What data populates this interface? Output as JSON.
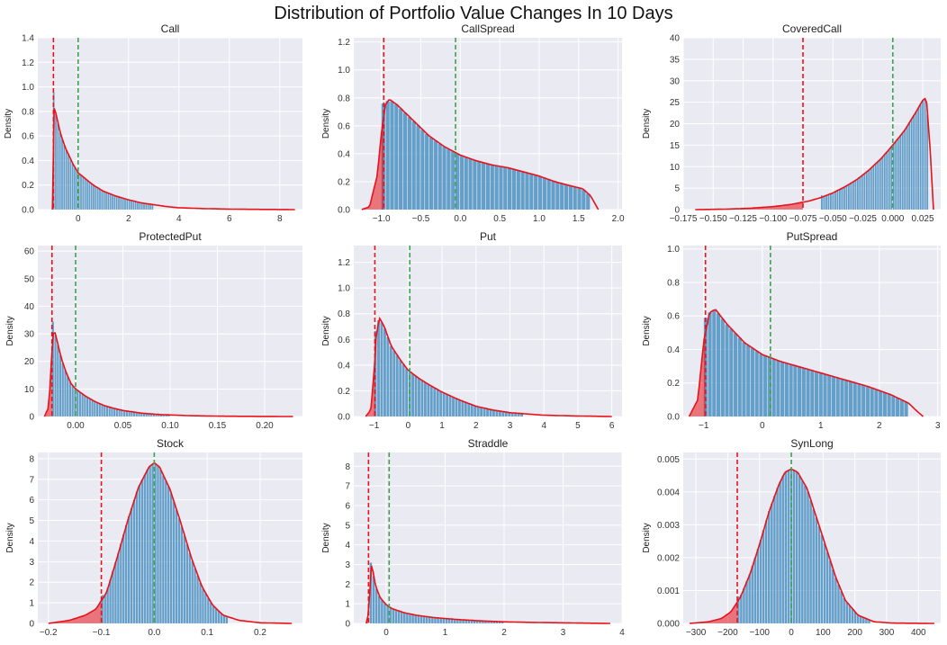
{
  "figure": {
    "title": "Distribution of Portfolio Value Changes In 10 Days"
  },
  "colors": {
    "background": "#eaeaf2",
    "grid": "#ffffff",
    "bar": "#4c92c3",
    "kde": "#e8121b",
    "var_line": "#e8121b",
    "mean_line": "#3fa34d"
  },
  "chart_data": [
    {
      "type": "histogram",
      "title": "Call",
      "ylabel": "Density",
      "xlim": [
        -1.6,
        8.9
      ],
      "ylim": [
        0,
        1.4
      ],
      "xticks": [
        0,
        2,
        4,
        6,
        8
      ],
      "xtick_labels": [
        "0",
        "2",
        "4",
        "6",
        "8"
      ],
      "yticks": [
        0,
        0.2,
        0.4,
        0.6,
        0.8,
        1.0,
        1.2,
        1.4
      ],
      "ytick_labels": [
        "0.0",
        "0.2",
        "0.4",
        "0.6",
        "0.8",
        "1.0",
        "1.2",
        "1.4"
      ],
      "x": [
        -1.02,
        -1.0,
        -0.9,
        -0.7,
        -0.5,
        -0.2,
        0.0,
        0.3,
        0.6,
        1.0,
        1.5,
        2.0,
        2.5,
        3.0,
        3.5,
        4.0,
        5.0,
        6.0,
        7.0,
        8.0,
        8.6
      ],
      "density": [
        0,
        0.85,
        0.8,
        0.62,
        0.5,
        0.37,
        0.3,
        0.25,
        0.2,
        0.15,
        0.11,
        0.08,
        0.055,
        0.04,
        0.025,
        0.015,
        0.008,
        0.004,
        0.002,
        0.001,
        0
      ],
      "var_line": -0.98,
      "mean_line": 0.0,
      "bar_range": [
        -1.0,
        3.0
      ]
    },
    {
      "type": "histogram",
      "title": "CallSpread",
      "ylabel": "Density",
      "xlim": [
        -1.35,
        2.05
      ],
      "ylim": [
        0,
        1.23
      ],
      "xticks": [
        -1.0,
        -0.5,
        0.0,
        0.5,
        1.0,
        1.5,
        2.0
      ],
      "xtick_labels": [
        "−1.0",
        "−0.5",
        "0.0",
        "0.5",
        "1.0",
        "1.5",
        "2.0"
      ],
      "yticks": [
        0,
        0.2,
        0.4,
        0.6,
        0.8,
        1.0,
        1.2
      ],
      "ytick_labels": [
        "0.0",
        "0.2",
        "0.4",
        "0.6",
        "0.8",
        "1.0",
        "1.2"
      ],
      "x": [
        -1.25,
        -1.15,
        -1.05,
        -1.0,
        -0.95,
        -0.9,
        -0.8,
        -0.6,
        -0.4,
        -0.2,
        0.0,
        0.2,
        0.4,
        0.6,
        0.8,
        1.0,
        1.2,
        1.4,
        1.55,
        1.65,
        1.75
      ],
      "density": [
        0,
        0.02,
        0.25,
        0.55,
        0.75,
        0.79,
        0.75,
        0.64,
        0.53,
        0.45,
        0.39,
        0.35,
        0.32,
        0.3,
        0.27,
        0.24,
        0.2,
        0.17,
        0.15,
        0.1,
        0
      ],
      "var_line": -0.97,
      "mean_line": -0.06,
      "bar_range": [
        -1.0,
        1.65
      ]
    },
    {
      "type": "histogram",
      "title": "CoveredCall",
      "ylabel": "Density",
      "xlim": [
        -0.175,
        0.04
      ],
      "ylim": [
        0,
        40
      ],
      "xticks": [
        -0.175,
        -0.15,
        -0.125,
        -0.1,
        -0.075,
        -0.05,
        -0.025,
        0.0,
        0.025
      ],
      "xtick_labels": [
        "−0.175",
        "−0.150",
        "−0.125",
        "−0.100",
        "−0.075",
        "−0.050",
        "−0.025",
        "0.000",
        "0.025"
      ],
      "yticks": [
        0,
        5,
        10,
        15,
        20,
        25,
        30,
        35,
        40
      ],
      "ytick_labels": [
        "0",
        "5",
        "10",
        "15",
        "20",
        "25",
        "30",
        "35",
        "40"
      ],
      "x": [
        -0.165,
        -0.14,
        -0.12,
        -0.1,
        -0.085,
        -0.07,
        -0.06,
        -0.05,
        -0.04,
        -0.03,
        -0.02,
        -0.01,
        0.0,
        0.01,
        0.02,
        0.025,
        0.028,
        0.031,
        0.034
      ],
      "density": [
        0,
        0.1,
        0.3,
        0.7,
        1.2,
        2.0,
        2.8,
        3.9,
        5.3,
        7.0,
        9.2,
        11.8,
        15.0,
        18.5,
        23.0,
        25.5,
        26.0,
        15.0,
        0
      ],
      "var_line": -0.075,
      "mean_line": 0.0,
      "bar_range": [
        -0.06,
        0.03
      ]
    },
    {
      "type": "histogram",
      "title": "ProtectedPut",
      "ylabel": "Density",
      "xlim": [
        -0.04,
        0.24
      ],
      "ylim": [
        0,
        62
      ],
      "xticks": [
        0.0,
        0.05,
        0.1,
        0.15,
        0.2
      ],
      "xtick_labels": [
        "0.00",
        "0.05",
        "0.10",
        "0.15",
        "0.20"
      ],
      "yticks": [
        0,
        10,
        20,
        30,
        40,
        50,
        60
      ],
      "ytick_labels": [
        "0",
        "10",
        "20",
        "30",
        "40",
        "50",
        "60"
      ],
      "x": [
        -0.033,
        -0.029,
        -0.026,
        -0.025,
        -0.023,
        -0.02,
        -0.015,
        -0.01,
        -0.005,
        0.0,
        0.01,
        0.02,
        0.03,
        0.04,
        0.05,
        0.07,
        0.09,
        0.12,
        0.16,
        0.2,
        0.23
      ],
      "density": [
        0,
        3,
        15,
        26,
        32,
        28,
        21,
        16,
        12,
        10,
        7.5,
        5.5,
        4.0,
        3.0,
        2.2,
        1.2,
        0.7,
        0.3,
        0.1,
        0.03,
        0
      ],
      "var_line": -0.025,
      "mean_line": 0.0,
      "bar_range": [
        -0.025,
        0.1
      ]
    },
    {
      "type": "histogram",
      "title": "Put",
      "ylabel": "Density",
      "xlim": [
        -1.6,
        6.3
      ],
      "ylim": [
        0,
        1.33
      ],
      "xticks": [
        -1,
        0,
        1,
        2,
        3,
        4,
        5,
        6
      ],
      "xtick_labels": [
        "−1",
        "0",
        "1",
        "2",
        "3",
        "4",
        "5",
        "6"
      ],
      "yticks": [
        0,
        0.2,
        0.4,
        0.6,
        0.8,
        1.0,
        1.2
      ],
      "ytick_labels": [
        "0.0",
        "0.2",
        "0.4",
        "0.6",
        "0.8",
        "1.0",
        "1.2"
      ],
      "x": [
        -1.25,
        -1.1,
        -1.0,
        -0.95,
        -0.85,
        -0.7,
        -0.5,
        -0.2,
        0.0,
        0.3,
        0.6,
        1.0,
        1.5,
        2.0,
        2.5,
        3.0,
        3.5,
        4.0,
        5.0,
        6.0
      ],
      "density": [
        0,
        0.05,
        0.35,
        0.6,
        0.77,
        0.7,
        0.55,
        0.43,
        0.36,
        0.3,
        0.25,
        0.19,
        0.13,
        0.08,
        0.05,
        0.03,
        0.02,
        0.01,
        0.004,
        0
      ],
      "var_line": -0.98,
      "mean_line": 0.05,
      "bar_range": [
        -1.0,
        3.4
      ]
    },
    {
      "type": "histogram",
      "title": "PutSpread",
      "ylabel": "Density",
      "xlim": [
        -1.35,
        3.05
      ],
      "ylim": [
        0,
        1.02
      ],
      "xticks": [
        -1,
        0,
        1,
        2,
        3
      ],
      "xtick_labels": [
        "−1",
        "0",
        "1",
        "2",
        "3"
      ],
      "yticks": [
        0,
        0.2,
        0.4,
        0.6,
        0.8,
        1.0
      ],
      "ytick_labels": [
        "0.0",
        "0.2",
        "0.4",
        "0.6",
        "0.8",
        "1.0"
      ],
      "x": [
        -1.25,
        -1.1,
        -1.0,
        -0.9,
        -0.8,
        -0.6,
        -0.3,
        0.0,
        0.3,
        0.6,
        1.0,
        1.4,
        1.8,
        2.2,
        2.5,
        2.65,
        2.75
      ],
      "density": [
        0,
        0.1,
        0.45,
        0.62,
        0.64,
        0.55,
        0.44,
        0.37,
        0.33,
        0.3,
        0.26,
        0.22,
        0.18,
        0.13,
        0.08,
        0.03,
        0
      ],
      "var_line": -0.97,
      "mean_line": 0.14,
      "bar_range": [
        -1.0,
        2.5
      ]
    },
    {
      "type": "histogram",
      "title": "Stock",
      "ylabel": "Density",
      "xlim": [
        -0.22,
        0.28
      ],
      "ylim": [
        0,
        8.3
      ],
      "xticks": [
        -0.2,
        -0.1,
        0.0,
        0.1,
        0.2
      ],
      "xtick_labels": [
        "−0.2",
        "−0.1",
        "0.0",
        "0.1",
        "0.2"
      ],
      "yticks": [
        0,
        1,
        2,
        3,
        4,
        5,
        6,
        7,
        8
      ],
      "ytick_labels": [
        "0",
        "1",
        "2",
        "3",
        "4",
        "5",
        "6",
        "7",
        "8"
      ],
      "x": [
        -0.2,
        -0.16,
        -0.13,
        -0.11,
        -0.09,
        -0.07,
        -0.05,
        -0.03,
        -0.01,
        0.0,
        0.01,
        0.03,
        0.05,
        0.07,
        0.09,
        0.11,
        0.13,
        0.16,
        0.2,
        0.26
      ],
      "density": [
        0,
        0.15,
        0.4,
        0.7,
        1.5,
        3.2,
        5.0,
        6.6,
        7.6,
        7.8,
        7.6,
        6.5,
        4.9,
        3.2,
        1.8,
        0.9,
        0.4,
        0.15,
        0.03,
        0
      ],
      "var_line": -0.1,
      "mean_line": 0.0,
      "bar_range": [
        -0.1,
        0.14
      ]
    },
    {
      "type": "histogram",
      "title": "Straddle",
      "ylabel": "Density",
      "xlim": [
        -0.55,
        4.0
      ],
      "ylim": [
        0,
        8.7
      ],
      "xticks": [
        0,
        1,
        2,
        3,
        4
      ],
      "xtick_labels": [
        "0",
        "1",
        "2",
        "3",
        "4"
      ],
      "yticks": [
        0,
        1,
        2,
        3,
        4,
        5,
        6,
        7,
        8
      ],
      "ytick_labels": [
        "0",
        "1",
        "2",
        "3",
        "4",
        "5",
        "6",
        "7",
        "8"
      ],
      "x": [
        -0.34,
        -0.3,
        -0.27,
        -0.25,
        -0.22,
        -0.18,
        -0.1,
        0.0,
        0.1,
        0.3,
        0.5,
        0.8,
        1.2,
        1.6,
        2.0,
        2.5,
        3.0,
        3.5,
        3.8
      ],
      "density": [
        0,
        0.5,
        2.0,
        3.0,
        2.6,
        1.9,
        1.3,
        0.95,
        0.75,
        0.55,
        0.42,
        0.3,
        0.2,
        0.13,
        0.08,
        0.05,
        0.03,
        0.01,
        0
      ],
      "var_line": -0.3,
      "mean_line": 0.05,
      "bar_range": [
        -0.28,
        2.0
      ]
    },
    {
      "type": "histogram",
      "title": "SynLong",
      "ylabel": "Density",
      "xlim": [
        -340,
        470
      ],
      "ylim": [
        0,
        0.0052
      ],
      "xticks": [
        -300,
        -200,
        -100,
        0,
        100,
        200,
        300,
        400
      ],
      "xtick_labels": [
        "−300",
        "−200",
        "−100",
        "0",
        "100",
        "200",
        "300",
        "400"
      ],
      "yticks": [
        0,
        0.001,
        0.002,
        0.003,
        0.004,
        0.005
      ],
      "ytick_labels": [
        "0.000",
        "0.001",
        "0.002",
        "0.003",
        "0.004",
        "0.005"
      ],
      "x": [
        -320,
        -260,
        -220,
        -190,
        -160,
        -130,
        -100,
        -70,
        -40,
        -20,
        0,
        20,
        50,
        80,
        110,
        140,
        170,
        210,
        260,
        320,
        450
      ],
      "density": [
        0,
        5e-05,
        0.00015,
        0.00035,
        0.0008,
        0.0015,
        0.0024,
        0.0034,
        0.0042,
        0.0046,
        0.0047,
        0.0046,
        0.0041,
        0.0032,
        0.0023,
        0.0014,
        0.0007,
        0.00025,
        5e-05,
        1e-05,
        0
      ],
      "var_line": -170,
      "mean_line": 0,
      "bar_range": [
        -170,
        250
      ]
    }
  ]
}
